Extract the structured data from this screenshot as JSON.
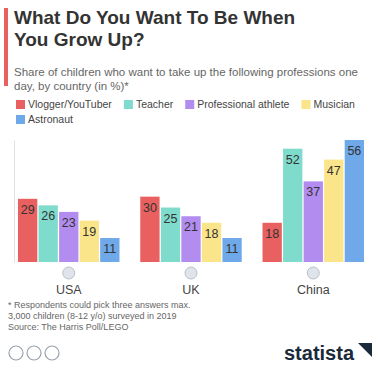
{
  "chart_data": {
    "type": "bar",
    "title": "What Do You Want To Be When You Grow Up?",
    "subtitle": "Share of children who want to take up the following professions one day, by country (in %)*",
    "categories": [
      "USA",
      "UK",
      "China"
    ],
    "series": [
      {
        "name": "Vlogger/YouTuber",
        "color": "#e8605f",
        "values": [
          29,
          30,
          18
        ]
      },
      {
        "name": "Teacher",
        "color": "#7fdccc",
        "values": [
          26,
          25,
          52
        ]
      },
      {
        "name": "Professional athlete",
        "color": "#b38cf0",
        "values": [
          23,
          21,
          37
        ]
      },
      {
        "name": "Musician",
        "color": "#fbe58a",
        "values": [
          19,
          18,
          47
        ]
      },
      {
        "name": "Astronaut",
        "color": "#6fa9e9",
        "values": [
          11,
          11,
          56
        ]
      }
    ],
    "ylim": [
      0,
      56
    ],
    "tick_labels": "x",
    "data_labels": true,
    "legend": "top",
    "annotations": [
      "* Respondents could pick three answers max.",
      "3,000 children (8-12 y/o) surveyed in 2019",
      "Source: The Harris Poll/LEGO"
    ],
    "logo": "statista"
  }
}
